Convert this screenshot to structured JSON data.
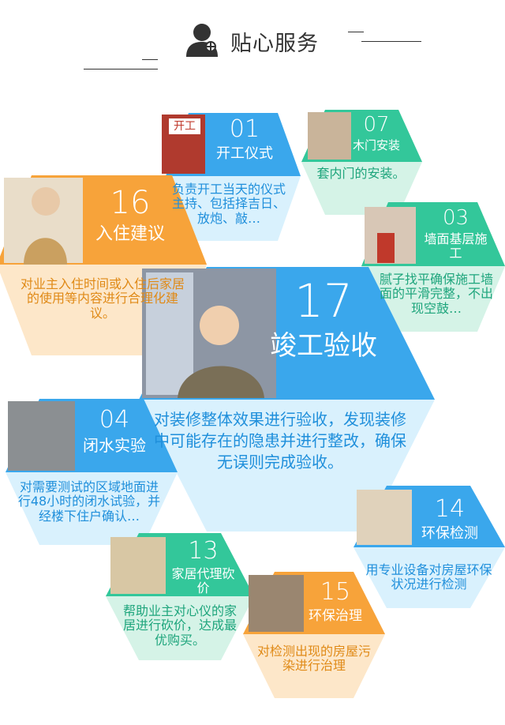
{
  "header": {
    "title": "贴心服务"
  },
  "tiles": [
    {
      "id": "01",
      "name": "开工仪式",
      "desc": "负责开工当天的仪式主持、包括择吉日、放炮、敲…",
      "sign": "开工"
    },
    {
      "id": "07",
      "name": "木门安装",
      "desc": "套内门的安装。"
    },
    {
      "id": "16",
      "name": "入住建议",
      "desc": "对业主入住时间或入住后家居的使用等内容进行合理化建议。"
    },
    {
      "id": "03",
      "name": "墙面基层施工",
      "desc": "腻子找平确保施工墙面的平滑完整，不出现空鼓…"
    },
    {
      "id": "17",
      "name": "竣工验收",
      "desc": "对装修整体效果进行验收，发现装修中可能存在的隐患并进行整改，确保无误则完成验收。"
    },
    {
      "id": "04",
      "name": "闭水实验",
      "desc": "对需要测试的区域地面进行48小时的闭水试验，并经楼下住户确认…"
    },
    {
      "id": "14",
      "name": "环保检测",
      "desc": "用专业设备对房屋环保状况进行检测"
    },
    {
      "id": "13",
      "name": "家居代理砍价",
      "desc": "帮助业主对心仪的家居进行砍价，达成最优购买。"
    },
    {
      "id": "15",
      "name": "环保治理",
      "desc": "对检测出现的房屋污染进行治理"
    }
  ],
  "colors": {
    "blue": "#3aa7ec",
    "orange": "#f7a33a",
    "green": "#33c79a",
    "light_blue": "#d9f1fd",
    "light_orange": "#fde7c9",
    "light_green": "#d5f3e7"
  }
}
